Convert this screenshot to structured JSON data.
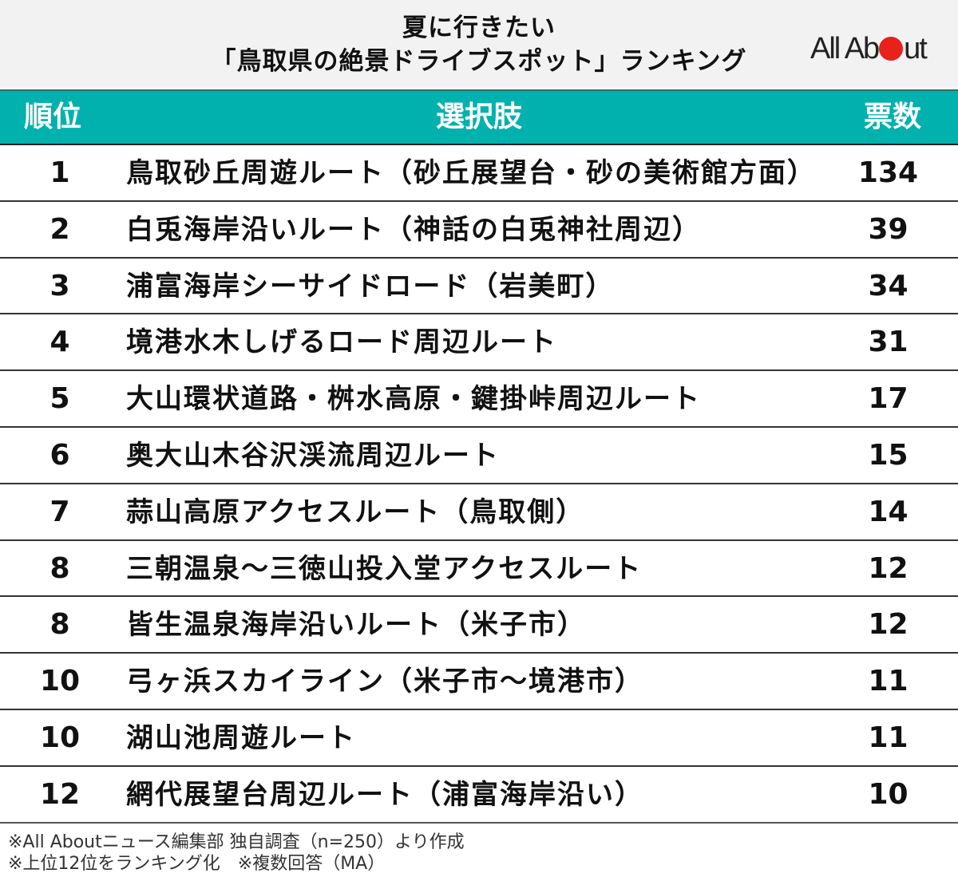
{
  "header": {
    "title_line1": "夏に行きたい",
    "title_line2": "「鳥取県の絶景ドライブスポット」ランキング",
    "logo_text_before": "All Ab",
    "logo_text_after": "ut"
  },
  "table": {
    "columns": {
      "rank": "順位",
      "choice": "選択肢",
      "votes": "票数"
    },
    "rows": [
      {
        "rank": "1",
        "name": "鳥取砂丘周遊ルート（砂丘展望台・砂の美術館方面）",
        "votes": "134"
      },
      {
        "rank": "2",
        "name": "白兎海岸沿いルート（神話の白兎神社周辺）",
        "votes": "39"
      },
      {
        "rank": "3",
        "name": "浦富海岸シーサイドロード（岩美町）",
        "votes": "34"
      },
      {
        "rank": "4",
        "name": "境港水木しげるロード周辺ルート",
        "votes": "31"
      },
      {
        "rank": "5",
        "name": "大山環状道路・桝水高原・鍵掛峠周辺ルート",
        "votes": "17"
      },
      {
        "rank": "6",
        "name": "奥大山木谷沢渓流周辺ルート",
        "votes": "15"
      },
      {
        "rank": "7",
        "name": "蒜山高原アクセスルート（鳥取側）",
        "votes": "14"
      },
      {
        "rank": "8",
        "name": "三朝温泉～三徳山投入堂アクセスルート",
        "votes": "12"
      },
      {
        "rank": "8",
        "name": "皆生温泉海岸沿いルート（米子市）",
        "votes": "12"
      },
      {
        "rank": "10",
        "name": "弓ヶ浜スカイライン（米子市～境港市）",
        "votes": "11"
      },
      {
        "rank": "10",
        "name": "湖山池周遊ルート",
        "votes": "11"
      },
      {
        "rank": "12",
        "name": "網代展望台周辺ルート（浦富海岸沿い）",
        "votes": "10"
      }
    ]
  },
  "footer": {
    "note1": "※All Aboutニュース編集部 独自調査（n=250）より作成",
    "note2": "※上位12位をランキング化　※複数回答（MA）"
  },
  "colors": {
    "header_bg": "#00b1ad",
    "title_bg": "#f2f2f2",
    "logo_dot": "#e8211b"
  },
  "chart_data": {
    "type": "table",
    "title": "夏に行きたい「鳥取県の絶景ドライブスポット」ランキング",
    "columns": [
      "順位",
      "選択肢",
      "票数"
    ],
    "categories": [
      "鳥取砂丘周遊ルート（砂丘展望台・砂の美術館方面）",
      "白兎海岸沿いルート（神話の白兎神社周辺）",
      "浦富海岸シーサイドロード（岩美町）",
      "境港水木しげるロード周辺ルート",
      "大山環状道路・桝水高原・鍵掛峠周辺ルート",
      "奥大山木谷沢渓流周辺ルート",
      "蒜山高原アクセスルート（鳥取側）",
      "三朝温泉～三徳山投入堂アクセスルート",
      "皆生温泉海岸沿いルート（米子市）",
      "弓ヶ浜スカイライン（米子市～境港市）",
      "湖山池周遊ルート",
      "網代展望台周辺ルート（浦富海岸沿い）"
    ],
    "ranks": [
      1,
      2,
      3,
      4,
      5,
      6,
      7,
      8,
      8,
      10,
      10,
      12
    ],
    "values": [
      134,
      39,
      34,
      31,
      17,
      15,
      14,
      12,
      12,
      11,
      11,
      10
    ],
    "notes": [
      "※All Aboutニュース編集部 独自調査（n=250）より作成",
      "※上位12位をランキング化　※複数回答（MA）"
    ]
  }
}
